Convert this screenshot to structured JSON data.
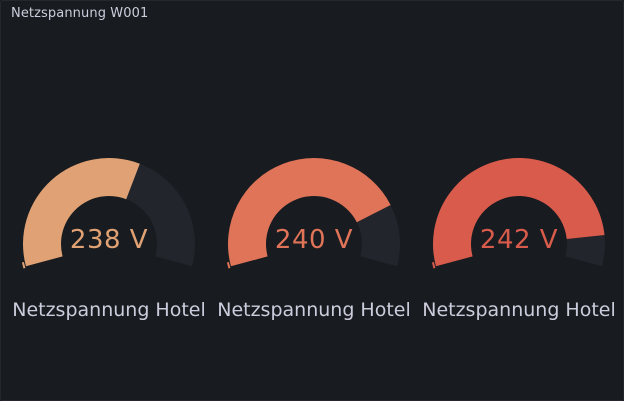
{
  "panel": {
    "title": "Netzspannung W001"
  },
  "gauges": [
    {
      "label": "Netzspannung Hotel",
      "value_text": "238 V",
      "value": 238,
      "fill_fraction": 0.6,
      "color": "#e0a274"
    },
    {
      "label": "Netzspannung Hotel",
      "value_text": "240 V",
      "value": 240,
      "fill_fraction": 0.8,
      "color": "#e07458"
    },
    {
      "label": "Netzspannung Hotel",
      "value_text": "242 V",
      "value": 242,
      "fill_fraction": 0.9,
      "color": "#d95b4c"
    }
  ],
  "colors": {
    "background": "#111217",
    "panel": "#181b1f",
    "track": "#22252b",
    "text": "#ccccdc"
  }
}
